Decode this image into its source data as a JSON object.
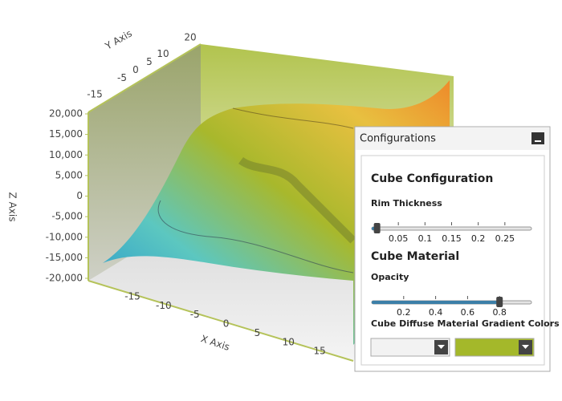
{
  "chart": {
    "x_axis_label": "X Axis",
    "y_axis_label": "Y Axis",
    "z_axis_label": "Z Axis",
    "xticks": [
      -15,
      -10,
      -5,
      0,
      5,
      10,
      15
    ],
    "yticks": [
      -15,
      -5,
      0,
      5,
      10,
      20
    ],
    "zticks": [
      {
        "value": 20000,
        "label": "20,000"
      },
      {
        "value": 15000,
        "label": "15,000"
      },
      {
        "value": 10000,
        "label": "10,000"
      },
      {
        "value": 5000,
        "label": "5,000"
      },
      0,
      {
        "value": -5000,
        "label": "-5,000"
      },
      {
        "value": -10000,
        "label": "-10,000"
      },
      {
        "value": -15000,
        "label": "-15,000"
      },
      {
        "value": -20000,
        "label": "-20,000"
      }
    ]
  },
  "panel": {
    "title": "Configurations",
    "sections": [
      {
        "title": "Cube Configuration",
        "controls": [
          {
            "label": "Rim Thickness",
            "min": 0,
            "max": 0.3,
            "value": 0.01,
            "ticks": [
              0.05,
              0.1,
              0.15,
              0.2,
              0.25
            ]
          }
        ]
      },
      {
        "title": "Cube Material",
        "controls": [
          {
            "label": "Opacity",
            "min": 0,
            "max": 1,
            "value": 0.8,
            "ticks": [
              0.2,
              0.4,
              0.6,
              0.8
            ]
          },
          {
            "label": "Cube Diffuse Material Gradient Colors",
            "colors": [
              "#f2f2f2",
              "#a4b82a"
            ]
          }
        ]
      }
    ]
  }
}
